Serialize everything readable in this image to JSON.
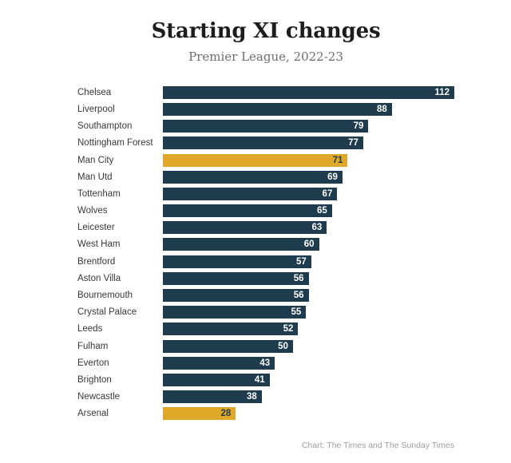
{
  "header": {
    "title": "Starting XI changes",
    "subtitle": "Premier League, 2022-23"
  },
  "footer": {
    "attribution": "Chart: The Times and The Sunday Times"
  },
  "colors": {
    "bar": "#1e3c4e",
    "highlight_bar": "#e0a828",
    "value_on_bar": "#ffffff",
    "value_on_highlight": "#1e3c4e"
  },
  "chart_data": {
    "type": "bar",
    "orientation": "horizontal",
    "title": "Starting XI changes",
    "subtitle": "Premier League, 2022-23",
    "categories": [
      "Chelsea",
      "Liverpool",
      "Southampton",
      "Nottingham Forest",
      "Man City",
      "Man Utd",
      "Tottenham",
      "Wolves",
      "Leicester",
      "West Ham",
      "Brentford",
      "Aston Villa",
      "Bournemouth",
      "Crystal Palace",
      "Leeds",
      "Fulham",
      "Everton",
      "Brighton",
      "Newcastle",
      "Arsenal"
    ],
    "values": [
      112,
      88,
      79,
      77,
      71,
      69,
      67,
      65,
      63,
      60,
      57,
      56,
      56,
      55,
      52,
      50,
      43,
      41,
      38,
      28
    ],
    "highlighted_categories": [
      "Man City",
      "Arsenal"
    ],
    "data_labels": "inside-end",
    "xlim": [
      0,
      112
    ],
    "grid": false,
    "legend": "none"
  }
}
